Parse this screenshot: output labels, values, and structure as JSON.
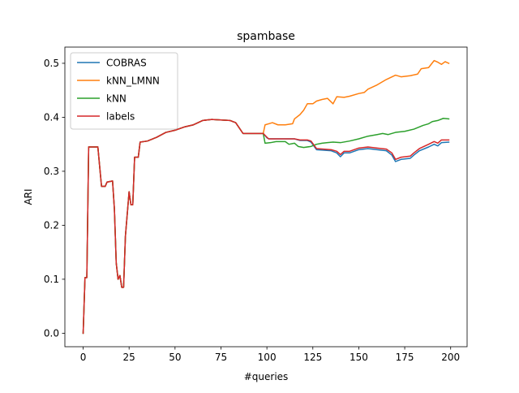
{
  "chart_data": {
    "type": "line",
    "title": "spambase",
    "xlabel": "#queries",
    "ylabel": "ARI",
    "xlim": [
      -9.95,
      208.95
    ],
    "ylim": [
      -0.025,
      0.53
    ],
    "xticks": [
      0,
      25,
      50,
      75,
      100,
      125,
      150,
      175,
      200
    ],
    "yticks": [
      0.0,
      0.1,
      0.2,
      0.3,
      0.4,
      0.5
    ],
    "xtick_labels": [
      "0",
      "25",
      "50",
      "75",
      "100",
      "125",
      "150",
      "175",
      "200"
    ],
    "ytick_labels": [
      "0.0",
      "0.1",
      "0.2",
      "0.3",
      "0.4",
      "0.5"
    ],
    "grid": false,
    "legend_position": "top-left",
    "series": [
      {
        "name": "COBRAS",
        "color": "#1f77b4",
        "points": [
          [
            0,
            0.0
          ],
          [
            1,
            0.103
          ],
          [
            2,
            0.103
          ],
          [
            3,
            0.345
          ],
          [
            8,
            0.345
          ],
          [
            10,
            0.272
          ],
          [
            12,
            0.272
          ],
          [
            13,
            0.28
          ],
          [
            16,
            0.282
          ],
          [
            17,
            0.23
          ],
          [
            18,
            0.13
          ],
          [
            19,
            0.1
          ],
          [
            20,
            0.107
          ],
          [
            21,
            0.085
          ],
          [
            22,
            0.085
          ],
          [
            23,
            0.18
          ],
          [
            25,
            0.262
          ],
          [
            26,
            0.238
          ],
          [
            27,
            0.238
          ],
          [
            28,
            0.326
          ],
          [
            30,
            0.326
          ],
          [
            31,
            0.354
          ],
          [
            35,
            0.356
          ],
          [
            40,
            0.363
          ],
          [
            45,
            0.372
          ],
          [
            50,
            0.376
          ],
          [
            55,
            0.382
          ],
          [
            60,
            0.386
          ],
          [
            65,
            0.394
          ],
          [
            70,
            0.396
          ],
          [
            75,
            0.395
          ],
          [
            80,
            0.394
          ],
          [
            83,
            0.39
          ],
          [
            85,
            0.38
          ],
          [
            87,
            0.37
          ],
          [
            92,
            0.37
          ],
          [
            98,
            0.37
          ],
          [
            100,
            0.362
          ],
          [
            101,
            0.36
          ],
          [
            115,
            0.36
          ],
          [
            118,
            0.357
          ],
          [
            122,
            0.357
          ],
          [
            124,
            0.354
          ],
          [
            127,
            0.34
          ],
          [
            135,
            0.338
          ],
          [
            138,
            0.334
          ],
          [
            140,
            0.327
          ],
          [
            142,
            0.334
          ],
          [
            145,
            0.334
          ],
          [
            150,
            0.34
          ],
          [
            155,
            0.342
          ],
          [
            160,
            0.34
          ],
          [
            165,
            0.338
          ],
          [
            168,
            0.33
          ],
          [
            170,
            0.318
          ],
          [
            173,
            0.322
          ],
          [
            178,
            0.324
          ],
          [
            180,
            0.33
          ],
          [
            183,
            0.338
          ],
          [
            188,
            0.345
          ],
          [
            191,
            0.35
          ],
          [
            193,
            0.347
          ],
          [
            195,
            0.353
          ],
          [
            199,
            0.354
          ]
        ]
      },
      {
        "name": "kNN_LMNN",
        "color": "#ff7f0e",
        "points": [
          [
            0,
            0.0
          ],
          [
            1,
            0.103
          ],
          [
            2,
            0.103
          ],
          [
            3,
            0.345
          ],
          [
            8,
            0.345
          ],
          [
            10,
            0.272
          ],
          [
            12,
            0.272
          ],
          [
            13,
            0.28
          ],
          [
            16,
            0.282
          ],
          [
            17,
            0.23
          ],
          [
            18,
            0.13
          ],
          [
            19,
            0.1
          ],
          [
            20,
            0.107
          ],
          [
            21,
            0.085
          ],
          [
            22,
            0.085
          ],
          [
            23,
            0.18
          ],
          [
            25,
            0.262
          ],
          [
            26,
            0.238
          ],
          [
            27,
            0.238
          ],
          [
            28,
            0.326
          ],
          [
            30,
            0.326
          ],
          [
            31,
            0.354
          ],
          [
            35,
            0.356
          ],
          [
            40,
            0.363
          ],
          [
            45,
            0.372
          ],
          [
            50,
            0.376
          ],
          [
            55,
            0.382
          ],
          [
            60,
            0.386
          ],
          [
            65,
            0.394
          ],
          [
            70,
            0.396
          ],
          [
            75,
            0.395
          ],
          [
            80,
            0.394
          ],
          [
            83,
            0.39
          ],
          [
            85,
            0.38
          ],
          [
            87,
            0.37
          ],
          [
            92,
            0.37
          ],
          [
            98,
            0.37
          ],
          [
            99,
            0.386
          ],
          [
            101,
            0.388
          ],
          [
            103,
            0.39
          ],
          [
            106,
            0.386
          ],
          [
            110,
            0.386
          ],
          [
            114,
            0.388
          ],
          [
            115,
            0.397
          ],
          [
            118,
            0.405
          ],
          [
            120,
            0.413
          ],
          [
            122,
            0.425
          ],
          [
            125,
            0.425
          ],
          [
            127,
            0.43
          ],
          [
            130,
            0.433
          ],
          [
            133,
            0.435
          ],
          [
            136,
            0.425
          ],
          [
            138,
            0.438
          ],
          [
            142,
            0.437
          ],
          [
            145,
            0.439
          ],
          [
            150,
            0.444
          ],
          [
            153,
            0.446
          ],
          [
            155,
            0.452
          ],
          [
            160,
            0.46
          ],
          [
            165,
            0.47
          ],
          [
            170,
            0.478
          ],
          [
            173,
            0.475
          ],
          [
            178,
            0.477
          ],
          [
            182,
            0.48
          ],
          [
            184,
            0.49
          ],
          [
            188,
            0.492
          ],
          [
            191,
            0.505
          ],
          [
            193,
            0.502
          ],
          [
            195,
            0.498
          ],
          [
            197,
            0.503
          ],
          [
            199,
            0.5
          ]
        ]
      },
      {
        "name": "kNN",
        "color": "#2ca02c",
        "points": [
          [
            0,
            0.0
          ],
          [
            1,
            0.103
          ],
          [
            2,
            0.103
          ],
          [
            3,
            0.345
          ],
          [
            8,
            0.345
          ],
          [
            10,
            0.272
          ],
          [
            12,
            0.272
          ],
          [
            13,
            0.28
          ],
          [
            16,
            0.282
          ],
          [
            17,
            0.23
          ],
          [
            18,
            0.13
          ],
          [
            19,
            0.1
          ],
          [
            20,
            0.107
          ],
          [
            21,
            0.085
          ],
          [
            22,
            0.085
          ],
          [
            23,
            0.18
          ],
          [
            25,
            0.262
          ],
          [
            26,
            0.238
          ],
          [
            27,
            0.238
          ],
          [
            28,
            0.326
          ],
          [
            30,
            0.326
          ],
          [
            31,
            0.354
          ],
          [
            35,
            0.356
          ],
          [
            40,
            0.363
          ],
          [
            45,
            0.372
          ],
          [
            50,
            0.376
          ],
          [
            55,
            0.382
          ],
          [
            60,
            0.386
          ],
          [
            65,
            0.394
          ],
          [
            70,
            0.396
          ],
          [
            75,
            0.395
          ],
          [
            80,
            0.394
          ],
          [
            83,
            0.39
          ],
          [
            85,
            0.38
          ],
          [
            87,
            0.37
          ],
          [
            92,
            0.37
          ],
          [
            98,
            0.37
          ],
          [
            99,
            0.352
          ],
          [
            102,
            0.353
          ],
          [
            105,
            0.355
          ],
          [
            110,
            0.355
          ],
          [
            112,
            0.35
          ],
          [
            115,
            0.352
          ],
          [
            117,
            0.346
          ],
          [
            120,
            0.344
          ],
          [
            124,
            0.346
          ],
          [
            127,
            0.35
          ],
          [
            130,
            0.352
          ],
          [
            133,
            0.353
          ],
          [
            136,
            0.354
          ],
          [
            140,
            0.353
          ],
          [
            145,
            0.356
          ],
          [
            150,
            0.36
          ],
          [
            155,
            0.365
          ],
          [
            160,
            0.368
          ],
          [
            163,
            0.37
          ],
          [
            166,
            0.368
          ],
          [
            170,
            0.372
          ],
          [
            175,
            0.374
          ],
          [
            180,
            0.378
          ],
          [
            185,
            0.385
          ],
          [
            188,
            0.388
          ],
          [
            190,
            0.392
          ],
          [
            193,
            0.394
          ],
          [
            196,
            0.398
          ],
          [
            199,
            0.397
          ]
        ]
      },
      {
        "name": "labels",
        "color": "#d62728",
        "points": [
          [
            0,
            0.0
          ],
          [
            1,
            0.103
          ],
          [
            2,
            0.103
          ],
          [
            3,
            0.345
          ],
          [
            8,
            0.345
          ],
          [
            10,
            0.272
          ],
          [
            12,
            0.272
          ],
          [
            13,
            0.28
          ],
          [
            16,
            0.282
          ],
          [
            17,
            0.23
          ],
          [
            18,
            0.13
          ],
          [
            19,
            0.1
          ],
          [
            20,
            0.107
          ],
          [
            21,
            0.085
          ],
          [
            22,
            0.085
          ],
          [
            23,
            0.18
          ],
          [
            25,
            0.262
          ],
          [
            26,
            0.238
          ],
          [
            27,
            0.238
          ],
          [
            28,
            0.326
          ],
          [
            30,
            0.326
          ],
          [
            31,
            0.354
          ],
          [
            35,
            0.356
          ],
          [
            40,
            0.363
          ],
          [
            45,
            0.372
          ],
          [
            50,
            0.376
          ],
          [
            55,
            0.382
          ],
          [
            60,
            0.386
          ],
          [
            65,
            0.394
          ],
          [
            70,
            0.396
          ],
          [
            75,
            0.395
          ],
          [
            80,
            0.394
          ],
          [
            83,
            0.39
          ],
          [
            85,
            0.38
          ],
          [
            87,
            0.37
          ],
          [
            92,
            0.37
          ],
          [
            98,
            0.37
          ],
          [
            100,
            0.363
          ],
          [
            101,
            0.36
          ],
          [
            115,
            0.36
          ],
          [
            118,
            0.358
          ],
          [
            122,
            0.358
          ],
          [
            124,
            0.356
          ],
          [
            127,
            0.342
          ],
          [
            135,
            0.34
          ],
          [
            138,
            0.337
          ],
          [
            140,
            0.331
          ],
          [
            142,
            0.337
          ],
          [
            145,
            0.337
          ],
          [
            150,
            0.343
          ],
          [
            155,
            0.345
          ],
          [
            160,
            0.343
          ],
          [
            165,
            0.341
          ],
          [
            168,
            0.334
          ],
          [
            170,
            0.322
          ],
          [
            173,
            0.326
          ],
          [
            178,
            0.328
          ],
          [
            180,
            0.334
          ],
          [
            183,
            0.342
          ],
          [
            188,
            0.35
          ],
          [
            191,
            0.355
          ],
          [
            193,
            0.352
          ],
          [
            195,
            0.358
          ],
          [
            199,
            0.358
          ]
        ]
      }
    ]
  }
}
